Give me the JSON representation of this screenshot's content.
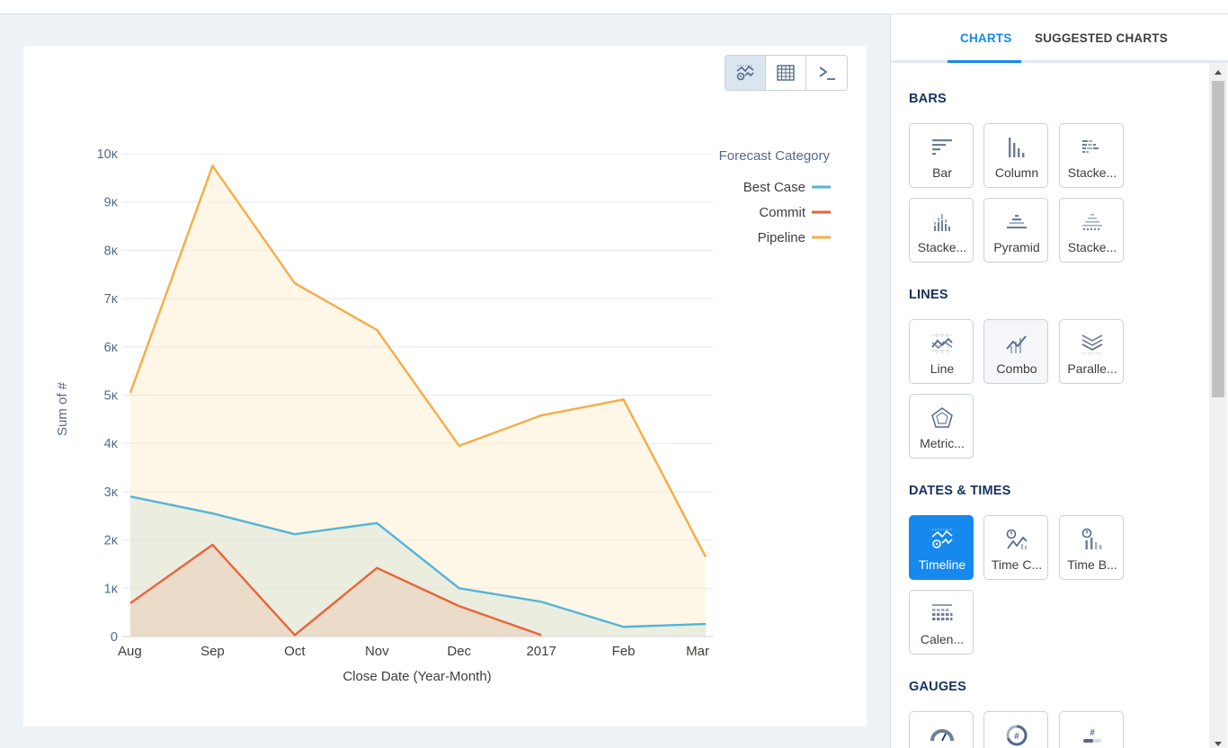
{
  "view_toggle": {
    "chart_icon": "timeline-chart-icon",
    "table_icon": "table-grid-icon",
    "query_icon": "terminal-prompt-icon",
    "active": "chart"
  },
  "chart_data": {
    "type": "area",
    "ylabel": "Sum of #",
    "xlabel": "Close Date (Year-Month)",
    "x": [
      "Aug",
      "Sep",
      "Oct",
      "Nov",
      "Dec",
      "2017",
      "Feb",
      "Mar"
    ],
    "y_ticks": [
      "0",
      "1κ",
      "2κ",
      "3κ",
      "4κ",
      "5κ",
      "6κ",
      "7κ",
      "8κ",
      "9κ",
      "10κ"
    ],
    "ylim": [
      0,
      10000
    ],
    "grid": true,
    "legend_title": "Forecast Category",
    "legend_position": "top-right",
    "series": [
      {
        "name": "Best Case",
        "color": "#54b4d6",
        "values": [
          2900,
          2550,
          2120,
          2350,
          1000,
          720,
          200,
          260
        ]
      },
      {
        "name": "Commit",
        "color": "#e8643a",
        "values": [
          690,
          1900,
          30,
          1420,
          630,
          30,
          null,
          null
        ]
      },
      {
        "name": "Pipeline",
        "color": "#f5ad47",
        "values": [
          5050,
          9750,
          7320,
          6350,
          3950,
          4580,
          4910,
          1650
        ]
      }
    ]
  },
  "panel": {
    "tabs": [
      {
        "label": "CHARTS",
        "active": true
      },
      {
        "label": "SUGGESTED CHARTS",
        "active": false
      }
    ],
    "sections": [
      {
        "title": "BARS",
        "tiles": [
          {
            "label": "Bar",
            "icon": "bar-chart-icon"
          },
          {
            "label": "Column",
            "icon": "column-chart-icon"
          },
          {
            "label": "Stacke...",
            "icon": "stacked-bar-icon"
          },
          {
            "label": "Stacke...",
            "icon": "stacked-column-icon"
          },
          {
            "label": "Pyramid",
            "icon": "pyramid-chart-icon"
          },
          {
            "label": "Stacke...",
            "icon": "stacked-percent-icon"
          }
        ]
      },
      {
        "title": "LINES",
        "tiles": [
          {
            "label": "Line",
            "icon": "line-chart-icon"
          },
          {
            "label": "Combo",
            "icon": "combo-chart-icon"
          },
          {
            "label": "Paralle...",
            "icon": "parallel-lines-icon"
          },
          {
            "label": "Metric...",
            "icon": "metric-radar-icon"
          }
        ]
      },
      {
        "title": "DATES & TIMES",
        "tiles": [
          {
            "label": "Timeline",
            "icon": "timeline-chart-icon",
            "active": true
          },
          {
            "label": "Time C...",
            "icon": "time-combo-icon"
          },
          {
            "label": "Time B...",
            "icon": "time-bar-icon"
          },
          {
            "label": "Calen...",
            "icon": "calendar-heatmap-icon"
          }
        ]
      },
      {
        "title": "GAUGES",
        "tiles": [
          {
            "label": "",
            "icon": "gauge-icon"
          },
          {
            "label": "",
            "icon": "number-ring-icon"
          },
          {
            "label": "",
            "icon": "number-bar-icon"
          }
        ]
      }
    ]
  }
}
